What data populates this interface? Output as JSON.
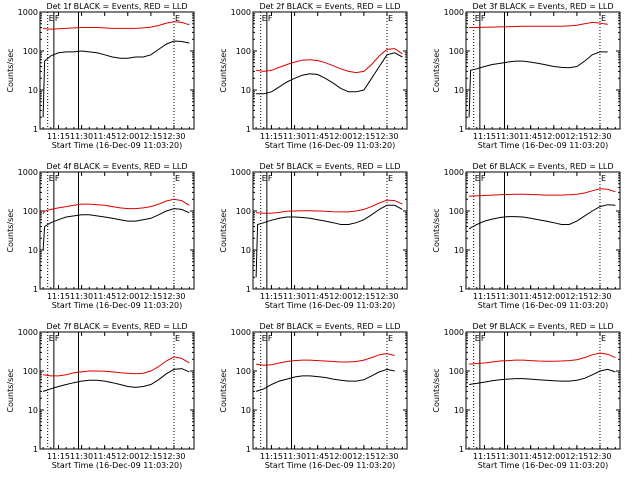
{
  "colors": {
    "events": "#000000",
    "lld": "#e00000",
    "axes": "#000000"
  },
  "shared": {
    "ylabel": "Counts/sec",
    "xlabel": "Start Time (16-Dec-09 11:03:20)",
    "x_ticks": [
      "11:15",
      "11:30",
      "11:45",
      "12:00",
      "12:15",
      "12:30"
    ],
    "y_ticks": [
      "1",
      "10",
      "100",
      "1000"
    ],
    "marker_letters": [
      "E",
      "F",
      "E"
    ]
  },
  "chart_data": [
    {
      "type": "line",
      "title": "Det 1f BLACK = Events, RED = LLD",
      "xlabel": "Start Time (16-Dec-09 11:03:20)",
      "ylabel": "Counts/sec",
      "yscale": "log",
      "ylim": [
        1,
        1000
      ],
      "xlim": [
        "11:03",
        "12:43"
      ],
      "x": [
        "11:05",
        "11:06",
        "11:07",
        "11:10",
        "11:15",
        "11:20",
        "11:25",
        "11:30",
        "11:35",
        "11:40",
        "11:45",
        "11:50",
        "11:55",
        "12:00",
        "12:05",
        "12:10",
        "12:15",
        "12:20",
        "12:25",
        "12:30",
        "12:35",
        "12:40"
      ],
      "series": [
        {
          "name": "Events",
          "color": "black",
          "values": [
            2,
            55,
            60,
            75,
            90,
            95,
            95,
            100,
            95,
            90,
            80,
            70,
            65,
            65,
            70,
            70,
            80,
            110,
            150,
            180,
            175,
            160
          ]
        },
        {
          "name": "LLD",
          "color": "red",
          "values": [
            380,
            380,
            370,
            360,
            370,
            380,
            390,
            400,
            400,
            400,
            390,
            380,
            380,
            380,
            380,
            390,
            410,
            450,
            520,
            560,
            540,
            470
          ]
        }
      ]
    },
    {
      "type": "line",
      "title": "Det 2f BLACK = Events, RED = LLD",
      "xlabel": "Start Time (16-Dec-09 11:03:20)",
      "ylabel": "Counts/sec",
      "yscale": "log",
      "ylim": [
        1,
        1000
      ],
      "xlim": [
        "11:03",
        "12:43"
      ],
      "x": [
        "11:05",
        "11:10",
        "11:15",
        "11:20",
        "11:25",
        "11:30",
        "11:35",
        "11:40",
        "11:45",
        "11:50",
        "11:55",
        "12:00",
        "12:05",
        "12:10",
        "12:15",
        "12:20",
        "12:25",
        "12:30",
        "12:35",
        "12:40"
      ],
      "series": [
        {
          "name": "Events",
          "color": "black",
          "values": [
            8,
            8,
            9,
            12,
            16,
            20,
            24,
            26,
            25,
            20,
            15,
            11,
            9,
            9,
            10,
            20,
            40,
            80,
            90,
            70
          ]
        },
        {
          "name": "LLD",
          "color": "red",
          "values": [
            32,
            30,
            32,
            38,
            45,
            52,
            58,
            60,
            57,
            50,
            42,
            35,
            30,
            28,
            30,
            45,
            75,
            110,
            115,
            85
          ]
        }
      ]
    },
    {
      "type": "line",
      "title": "Det 3f BLACK = Events, RED = LLD",
      "xlabel": "Start Time (16-Dec-09 11:03:20)",
      "ylabel": "Counts/sec",
      "yscale": "log",
      "ylim": [
        1,
        1000
      ],
      "xlim": [
        "11:03",
        "12:43"
      ],
      "x": [
        "11:05",
        "11:06",
        "11:10",
        "11:15",
        "11:20",
        "11:25",
        "11:30",
        "11:35",
        "11:40",
        "11:45",
        "11:50",
        "11:55",
        "12:00",
        "12:05",
        "12:10",
        "12:15",
        "12:20",
        "12:25",
        "12:30",
        "12:35"
      ],
      "series": [
        {
          "name": "Events",
          "color": "black",
          "values": [
            2,
            32,
            35,
            40,
            45,
            48,
            52,
            55,
            55,
            52,
            48,
            44,
            40,
            38,
            37,
            40,
            55,
            80,
            95,
            95
          ]
        },
        {
          "name": "LLD",
          "color": "red",
          "values": [
            400,
            400,
            400,
            405,
            410,
            415,
            420,
            425,
            430,
            430,
            430,
            430,
            430,
            430,
            440,
            460,
            500,
            540,
            520,
            480
          ]
        }
      ]
    },
    {
      "type": "line",
      "title": "Det 4f BLACK = Events, RED = LLD",
      "xlabel": "Start Time (16-Dec-09 11:03:20)",
      "ylabel": "Counts/sec",
      "yscale": "log",
      "ylim": [
        1,
        1000
      ],
      "xlim": [
        "11:03",
        "12:43"
      ],
      "x": [
        "11:05",
        "11:06",
        "11:10",
        "11:15",
        "11:20",
        "11:25",
        "11:30",
        "11:35",
        "11:40",
        "11:45",
        "11:50",
        "11:55",
        "12:00",
        "12:05",
        "12:10",
        "12:15",
        "12:20",
        "12:25",
        "12:30",
        "12:35",
        "12:40"
      ],
      "series": [
        {
          "name": "Events",
          "color": "black",
          "values": [
            10,
            40,
            50,
            60,
            70,
            75,
            80,
            80,
            75,
            70,
            65,
            60,
            55,
            55,
            60,
            65,
            80,
            100,
            115,
            110,
            90
          ]
        },
        {
          "name": "LLD",
          "color": "red",
          "values": [
            85,
            100,
            110,
            120,
            130,
            140,
            150,
            150,
            145,
            140,
            130,
            120,
            115,
            115,
            120,
            130,
            150,
            180,
            200,
            185,
            140
          ]
        }
      ]
    },
    {
      "type": "line",
      "title": "Det 5f BLACK = Events, RED = LLD",
      "xlabel": "Start Time (16-Dec-09 11:03:20)",
      "ylabel": "Counts/sec",
      "yscale": "log",
      "ylim": [
        1,
        1000
      ],
      "xlim": [
        "11:03",
        "12:43"
      ],
      "x": [
        "11:05",
        "11:06",
        "11:10",
        "11:15",
        "11:20",
        "11:25",
        "11:30",
        "11:35",
        "11:40",
        "11:45",
        "11:50",
        "11:55",
        "12:00",
        "12:05",
        "12:10",
        "12:15",
        "12:20",
        "12:25",
        "12:30",
        "12:35",
        "12:40"
      ],
      "series": [
        {
          "name": "Events",
          "color": "black",
          "values": [
            2,
            45,
            50,
            58,
            65,
            70,
            70,
            68,
            65,
            60,
            55,
            50,
            45,
            45,
            50,
            60,
            80,
            110,
            140,
            140,
            110
          ]
        },
        {
          "name": "LLD",
          "color": "red",
          "values": [
            90,
            90,
            88,
            88,
            92,
            98,
            100,
            102,
            102,
            100,
            98,
            96,
            95,
            95,
            100,
            110,
            130,
            160,
            190,
            185,
            150
          ]
        }
      ]
    },
    {
      "type": "line",
      "title": "Det 6f BLACK = Events, RED = LLD",
      "xlabel": "Start Time (16-Dec-09 11:03:20)",
      "ylabel": "Counts/sec",
      "yscale": "log",
      "ylim": [
        1,
        1000
      ],
      "xlim": [
        "11:03",
        "12:43"
      ],
      "x": [
        "11:05",
        "11:10",
        "11:15",
        "11:20",
        "11:25",
        "11:30",
        "11:35",
        "11:40",
        "11:45",
        "11:50",
        "11:55",
        "12:00",
        "12:05",
        "12:10",
        "12:15",
        "12:20",
        "12:25",
        "12:30",
        "12:35",
        "12:40"
      ],
      "series": [
        {
          "name": "Events",
          "color": "black",
          "values": [
            35,
            45,
            55,
            62,
            68,
            72,
            72,
            70,
            65,
            60,
            55,
            50,
            45,
            45,
            55,
            75,
            100,
            130,
            145,
            140
          ]
        },
        {
          "name": "LLD",
          "color": "red",
          "values": [
            240,
            245,
            250,
            255,
            260,
            265,
            270,
            270,
            265,
            260,
            255,
            255,
            255,
            260,
            270,
            290,
            330,
            370,
            360,
            310
          ]
        }
      ]
    },
    {
      "type": "line",
      "title": "Det 7f BLACK = Events, RED = LLD",
      "xlabel": "Start Time (16-Dec-09 11:03:20)",
      "ylabel": "Counts/sec",
      "yscale": "log",
      "ylim": [
        1,
        1000
      ],
      "xlim": [
        "11:03",
        "12:43"
      ],
      "x": [
        "11:05",
        "11:10",
        "11:15",
        "11:20",
        "11:25",
        "11:30",
        "11:35",
        "11:40",
        "11:45",
        "11:50",
        "11:55",
        "12:00",
        "12:05",
        "12:10",
        "12:15",
        "12:20",
        "12:25",
        "12:30",
        "12:35",
        "12:40"
      ],
      "series": [
        {
          "name": "Events",
          "color": "black",
          "values": [
            30,
            35,
            40,
            45,
            50,
            55,
            58,
            58,
            55,
            50,
            45,
            40,
            38,
            40,
            45,
            60,
            85,
            110,
            115,
            95
          ]
        },
        {
          "name": "LLD",
          "color": "red",
          "values": [
            80,
            75,
            75,
            80,
            90,
            95,
            100,
            100,
            98,
            95,
            90,
            88,
            85,
            88,
            100,
            130,
            180,
            230,
            210,
            160
          ]
        }
      ]
    },
    {
      "type": "line",
      "title": "Det 8f BLACK = Events, RED = LLD",
      "xlabel": "Start Time (16-Dec-09 11:03:20)",
      "ylabel": "Counts/sec",
      "yscale": "log",
      "ylim": [
        1,
        1000
      ],
      "xlim": [
        "11:03",
        "12:43"
      ],
      "x": [
        "11:05",
        "11:10",
        "11:15",
        "11:20",
        "11:25",
        "11:30",
        "11:35",
        "11:40",
        "11:45",
        "11:50",
        "11:55",
        "12:00",
        "12:05",
        "12:10",
        "12:15",
        "12:20",
        "12:25",
        "12:30",
        "12:35"
      ],
      "series": [
        {
          "name": "Events",
          "color": "black",
          "values": [
            30,
            35,
            45,
            55,
            62,
            70,
            75,
            75,
            72,
            68,
            62,
            58,
            55,
            55,
            60,
            75,
            95,
            110,
            100
          ]
        },
        {
          "name": "LLD",
          "color": "red",
          "values": [
            150,
            140,
            145,
            160,
            175,
            185,
            190,
            190,
            185,
            180,
            175,
            170,
            170,
            175,
            190,
            220,
            260,
            280,
            250
          ]
        }
      ]
    },
    {
      "type": "line",
      "title": "Det 9f BLACK = Events, RED = LLD",
      "xlabel": "Start Time (16-Dec-09 11:03:20)",
      "ylabel": "Counts/sec",
      "yscale": "log",
      "ylim": [
        1,
        1000
      ],
      "xlim": [
        "11:03",
        "12:43"
      ],
      "x": [
        "11:05",
        "11:10",
        "11:15",
        "11:20",
        "11:25",
        "11:30",
        "11:35",
        "11:40",
        "11:45",
        "11:50",
        "11:55",
        "12:00",
        "12:05",
        "12:10",
        "12:15",
        "12:20",
        "12:25",
        "12:30",
        "12:35",
        "12:40"
      ],
      "series": [
        {
          "name": "Events",
          "color": "black",
          "values": [
            45,
            48,
            52,
            56,
            60,
            62,
            64,
            64,
            62,
            60,
            58,
            56,
            55,
            55,
            58,
            65,
            80,
            100,
            110,
            95
          ]
        },
        {
          "name": "LLD",
          "color": "red",
          "values": [
            150,
            155,
            160,
            170,
            180,
            185,
            190,
            190,
            185,
            180,
            178,
            178,
            180,
            185,
            195,
            220,
            260,
            290,
            270,
            220
          ]
        }
      ]
    }
  ]
}
